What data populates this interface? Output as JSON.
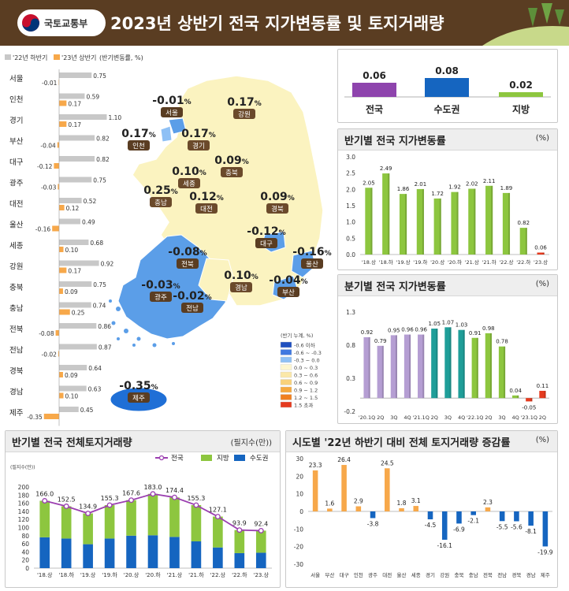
{
  "header": {
    "ministry": "국토교통부",
    "title": "2023년 상반기 전국 지가변동률 및 토지거래량",
    "bg_color": "#5a3d22"
  },
  "colors": {
    "gray_bar": "#c8c8c8",
    "orange_bar": "#f7a84a",
    "green": "#8dc63f",
    "purple": "#b59ed3",
    "blue": "#1565c0",
    "red": "#e53a1e",
    "line_purple": "#9b3fb0"
  },
  "legend_top": {
    "s1": "'22년 하반기",
    "s2": "'23년 상반기",
    "unit": "(반기변동률, %)"
  },
  "map": {
    "regions": [
      {
        "name": "서울",
        "value": "-0.01"
      },
      {
        "name": "인천",
        "value": "0.17"
      },
      {
        "name": "경기",
        "value": "0.17"
      },
      {
        "name": "강원",
        "value": "0.17"
      },
      {
        "name": "세종",
        "value": "0.10"
      },
      {
        "name": "충북",
        "value": "0.09"
      },
      {
        "name": "충남",
        "value": "0.25"
      },
      {
        "name": "대전",
        "value": "0.12"
      },
      {
        "name": "경북",
        "value": "0.09"
      },
      {
        "name": "대구",
        "value": "-0.12"
      },
      {
        "name": "전북",
        "value": "-0.08"
      },
      {
        "name": "울산",
        "value": "-0.16"
      },
      {
        "name": "경남",
        "value": "0.10"
      },
      {
        "name": "부산",
        "value": "-0.04"
      },
      {
        "name": "광주",
        "value": "-0.03"
      },
      {
        "name": "전남",
        "value": "-0.02"
      },
      {
        "name": "제주",
        "value": "-0.35"
      }
    ],
    "unit": "%",
    "legend_title": "(반기 누계, %)",
    "legend": [
      "-0.6 이하",
      "-0.6 ~ -0.3",
      "-0.3 ~ 0.0",
      "0.0 ~ 0.3",
      "0.3 ~ 0.6",
      "0.6 ~ 0.9",
      "0.9 ~ 1.2",
      "1.2 ~ 1.5",
      "1.5 초과"
    ]
  },
  "chart_data": [
    {
      "type": "bar",
      "title": "",
      "orientation": "horizontal",
      "categories": [
        "서울",
        "인천",
        "경기",
        "부산",
        "대구",
        "광주",
        "대전",
        "울산",
        "세종",
        "강원",
        "충북",
        "충남",
        "전북",
        "전남",
        "경북",
        "경남",
        "제주"
      ],
      "series": [
        {
          "name": "'22년 하반기",
          "values": [
            0.75,
            0.59,
            1.1,
            0.82,
            0.82,
            0.75,
            0.52,
            0.49,
            0.68,
            0.92,
            0.75,
            0.74,
            0.86,
            0.87,
            0.64,
            0.63,
            0.45
          ]
        },
        {
          "name": "'23년 상반기",
          "values": [
            -0.01,
            0.17,
            0.17,
            -0.04,
            -0.12,
            -0.03,
            0.12,
            -0.16,
            0.1,
            0.17,
            0.09,
            0.25,
            -0.08,
            -0.02,
            0.09,
            0.1,
            -0.35
          ]
        }
      ],
      "unit": "(반기변동률, %)"
    },
    {
      "type": "bar",
      "title": "",
      "categories": [
        "전국",
        "수도권",
        "지방"
      ],
      "values": [
        0.06,
        0.08,
        0.02
      ]
    },
    {
      "type": "bar",
      "title": "반기별 전국 지가변동률",
      "unit": "(%)",
      "categories": [
        "'18.상",
        "'18.하",
        "'19.상",
        "'19.하",
        "'20.상",
        "'20.하",
        "'21.상",
        "'21.하",
        "'22.상",
        "'22.하",
        "'23.상"
      ],
      "values": [
        2.05,
        2.49,
        1.86,
        2.01,
        1.72,
        1.92,
        2.02,
        2.11,
        1.89,
        0.82,
        0.06
      ],
      "value_labels": [
        "2.05",
        "2.49",
        "1.86",
        "2.01",
        "1.72",
        "1.92",
        "2.02",
        "2.11",
        "1.89",
        "0.82",
        "0.06"
      ],
      "ylim": [
        0,
        3.0
      ],
      "yticks": [
        "0.0",
        "0.5",
        "1.0",
        "1.5",
        "2.0",
        "2.5",
        "3.0"
      ]
    },
    {
      "type": "bar",
      "title": "분기별 전국 지가변동률",
      "unit": "(%)",
      "categories": [
        "'20.1Q",
        "2Q",
        "3Q",
        "4Q",
        "'21.1Q",
        "2Q",
        "3Q",
        "4Q",
        "'22.1Q",
        "2Q",
        "3Q",
        "4Q",
        "'23.1Q",
        "2Q"
      ],
      "values": [
        0.92,
        0.79,
        0.95,
        0.96,
        0.96,
        1.05,
        1.07,
        1.03,
        0.91,
        0.98,
        0.78,
        0.04,
        -0.05,
        0.11
      ],
      "value_labels": [
        "0.92",
        "0.79",
        "0.95",
        "0.96",
        "0.96",
        "1.05",
        "1.07",
        "1.03",
        "0.91",
        "0.98",
        "0.78",
        "0.04",
        "-0.05",
        "0.11"
      ],
      "ylim": [
        -0.2,
        1.3
      ],
      "yticks": [
        "-0.2",
        "0.3",
        "0.8",
        "1.3"
      ]
    },
    {
      "type": "bar",
      "stacked": true,
      "title": "반기별 전국 전체토지거래량",
      "unit": "(필지수(만))",
      "ylabel": "(필지수(만))",
      "categories": [
        "'18.상",
        "'18.하",
        "'19.상",
        "'19.하",
        "'20.상",
        "'20.하",
        "'21.상",
        "'21.하",
        "'22.상",
        "'22.하",
        "'23.상"
      ],
      "series": [
        {
          "name": "수도권",
          "values": [
            76,
            73,
            59,
            73,
            80,
            81,
            77,
            66,
            51,
            37,
            38
          ]
        },
        {
          "name": "지방",
          "values": [
            90.0,
            79.5,
            75.9,
            82.3,
            87.6,
            102.0,
            97.4,
            89.3,
            76.1,
            56.9,
            54.4
          ]
        }
      ],
      "line": {
        "name": "전국",
        "values": [
          166.0,
          152.5,
          134.9,
          155.3,
          167.6,
          183.0,
          174.4,
          155.3,
          127.1,
          93.9,
          92.4
        ]
      },
      "line_labels": [
        "166.0",
        "152.5",
        "134.9",
        "155.3",
        "167.6",
        "183.0",
        "174.4",
        "155.3",
        "127.1",
        "93.9",
        "92.4"
      ],
      "legend": [
        "전국",
        "지방",
        "수도권"
      ],
      "ylim": [
        0,
        200
      ],
      "yticks": [
        "0",
        "20",
        "40",
        "60",
        "80",
        "100",
        "120",
        "140",
        "160",
        "180",
        "200"
      ]
    },
    {
      "type": "bar",
      "title": "시도별 '22년 하반기 대비 전체 토지거래량 증감률",
      "unit": "(%)",
      "categories": [
        "서울",
        "부산",
        "대구",
        "인천",
        "광주",
        "대전",
        "울산",
        "세종",
        "경기",
        "강원",
        "충북",
        "충남",
        "전북",
        "전남",
        "경북",
        "경남",
        "제주"
      ],
      "values": [
        23.3,
        1.6,
        26.4,
        2.9,
        -3.8,
        24.5,
        1.8,
        3.1,
        -4.5,
        -16.1,
        -6.9,
        -2.1,
        2.3,
        -5.5,
        -5.6,
        -8.1,
        -19.9
      ],
      "value_labels": [
        "23.3",
        "1.6",
        "26.4",
        "2.9",
        "-3.8",
        "24.5",
        "1.8",
        "3.1",
        "-4.5",
        "-16.1",
        "-6.9",
        "-2.1",
        "2.3",
        "-5.5",
        "-5.6",
        "-8.1",
        "-19.9"
      ],
      "ylim": [
        -30,
        30
      ],
      "yticks": [
        "-30",
        "-20",
        "-10",
        "0",
        "10",
        "20",
        "30"
      ]
    }
  ]
}
